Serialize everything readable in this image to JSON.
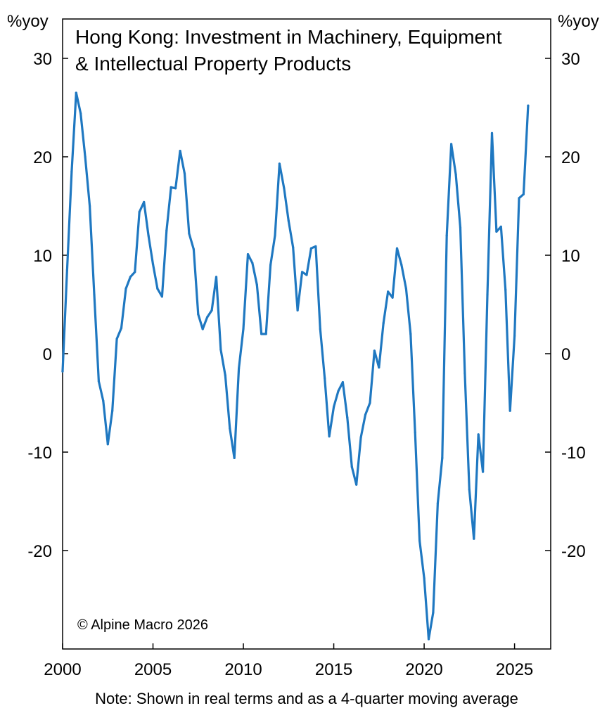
{
  "chart_data": {
    "type": "line",
    "title_lines": [
      "Hong Kong: Investment in Machinery, Equipment",
      "& Intellectual Property Products"
    ],
    "y_unit_left": "%yoy",
    "y_unit_right": "%yoy",
    "ylim": [
      -30,
      34
    ],
    "y_ticks": [
      30,
      20,
      10,
      0,
      -10,
      -20
    ],
    "xlim": [
      2000,
      2027
    ],
    "x_ticks": [
      2000,
      2005,
      2010,
      2015,
      2020,
      2025
    ],
    "grid": false,
    "series": [
      {
        "color": "#1f78c1",
        "points": [
          [
            2000.0,
            -1.8
          ],
          [
            2000.25,
            8.5
          ],
          [
            2000.5,
            18.5
          ],
          [
            2000.75,
            26.5
          ],
          [
            2001.0,
            24.4
          ],
          [
            2001.25,
            20.0
          ],
          [
            2001.5,
            15.0
          ],
          [
            2001.75,
            6.0
          ],
          [
            2002.0,
            -2.8
          ],
          [
            2002.25,
            -4.8
          ],
          [
            2002.5,
            -9.2
          ],
          [
            2002.75,
            -5.8
          ],
          [
            2003.0,
            1.5
          ],
          [
            2003.25,
            2.6
          ],
          [
            2003.5,
            6.6
          ],
          [
            2003.75,
            7.8
          ],
          [
            2004.0,
            8.3
          ],
          [
            2004.25,
            14.4
          ],
          [
            2004.5,
            15.4
          ],
          [
            2004.75,
            12.0
          ],
          [
            2005.0,
            9.1
          ],
          [
            2005.25,
            6.6
          ],
          [
            2005.5,
            5.8
          ],
          [
            2005.75,
            12.5
          ],
          [
            2006.0,
            16.9
          ],
          [
            2006.25,
            16.8
          ],
          [
            2006.5,
            20.6
          ],
          [
            2006.75,
            18.3
          ],
          [
            2007.0,
            12.2
          ],
          [
            2007.25,
            10.6
          ],
          [
            2007.5,
            4.0
          ],
          [
            2007.75,
            2.5
          ],
          [
            2008.0,
            3.7
          ],
          [
            2008.25,
            4.4
          ],
          [
            2008.5,
            7.8
          ],
          [
            2008.75,
            0.4
          ],
          [
            2009.0,
            -2.2
          ],
          [
            2009.25,
            -7.6
          ],
          [
            2009.5,
            -10.6
          ],
          [
            2009.75,
            -1.5
          ],
          [
            2010.0,
            2.5
          ],
          [
            2010.25,
            10.1
          ],
          [
            2010.5,
            9.2
          ],
          [
            2010.75,
            7.0
          ],
          [
            2011.0,
            2.0
          ],
          [
            2011.25,
            2.0
          ],
          [
            2011.5,
            9.0
          ],
          [
            2011.75,
            12.0
          ],
          [
            2012.0,
            19.3
          ],
          [
            2012.25,
            16.8
          ],
          [
            2012.5,
            13.5
          ],
          [
            2012.75,
            10.8
          ],
          [
            2013.0,
            4.4
          ],
          [
            2013.25,
            8.3
          ],
          [
            2013.5,
            8.0
          ],
          [
            2013.75,
            10.7
          ],
          [
            2014.0,
            10.9
          ],
          [
            2014.25,
            2.5
          ],
          [
            2014.5,
            -2.5
          ],
          [
            2014.75,
            -8.4
          ],
          [
            2015.0,
            -5.4
          ],
          [
            2015.25,
            -3.8
          ],
          [
            2015.5,
            -2.9
          ],
          [
            2015.75,
            -6.5
          ],
          [
            2016.0,
            -11.5
          ],
          [
            2016.25,
            -13.3
          ],
          [
            2016.5,
            -8.5
          ],
          [
            2016.75,
            -6.2
          ],
          [
            2017.0,
            -5.0
          ],
          [
            2017.25,
            0.3
          ],
          [
            2017.5,
            -1.4
          ],
          [
            2017.75,
            3.1
          ],
          [
            2018.0,
            6.3
          ],
          [
            2018.25,
            5.7
          ],
          [
            2018.5,
            10.7
          ],
          [
            2018.75,
            9.0
          ],
          [
            2019.0,
            6.6
          ],
          [
            2019.25,
            2.0
          ],
          [
            2019.5,
            -8.0
          ],
          [
            2019.75,
            -19.0
          ],
          [
            2020.0,
            -22.8
          ],
          [
            2020.25,
            -29.0
          ],
          [
            2020.5,
            -26.3
          ],
          [
            2020.75,
            -15.2
          ],
          [
            2021.0,
            -10.6
          ],
          [
            2021.25,
            12.0
          ],
          [
            2021.5,
            21.3
          ],
          [
            2021.75,
            18.2
          ],
          [
            2022.0,
            12.8
          ],
          [
            2022.25,
            -2.0
          ],
          [
            2022.5,
            -13.8
          ],
          [
            2022.75,
            -18.8
          ],
          [
            2023.0,
            -8.2
          ],
          [
            2023.25,
            -12.0
          ],
          [
            2023.5,
            6.0
          ],
          [
            2023.75,
            22.4
          ],
          [
            2024.0,
            12.4
          ],
          [
            2024.25,
            12.9
          ],
          [
            2024.5,
            6.5
          ],
          [
            2024.75,
            -5.8
          ],
          [
            2025.0,
            1.8
          ],
          [
            2025.25,
            15.8
          ],
          [
            2025.5,
            16.2
          ],
          [
            2025.75,
            25.2
          ]
        ]
      }
    ],
    "copyright": "© Alpine Macro 2026",
    "note": "Note: Shown in real terms and as a 4-quarter moving average"
  }
}
